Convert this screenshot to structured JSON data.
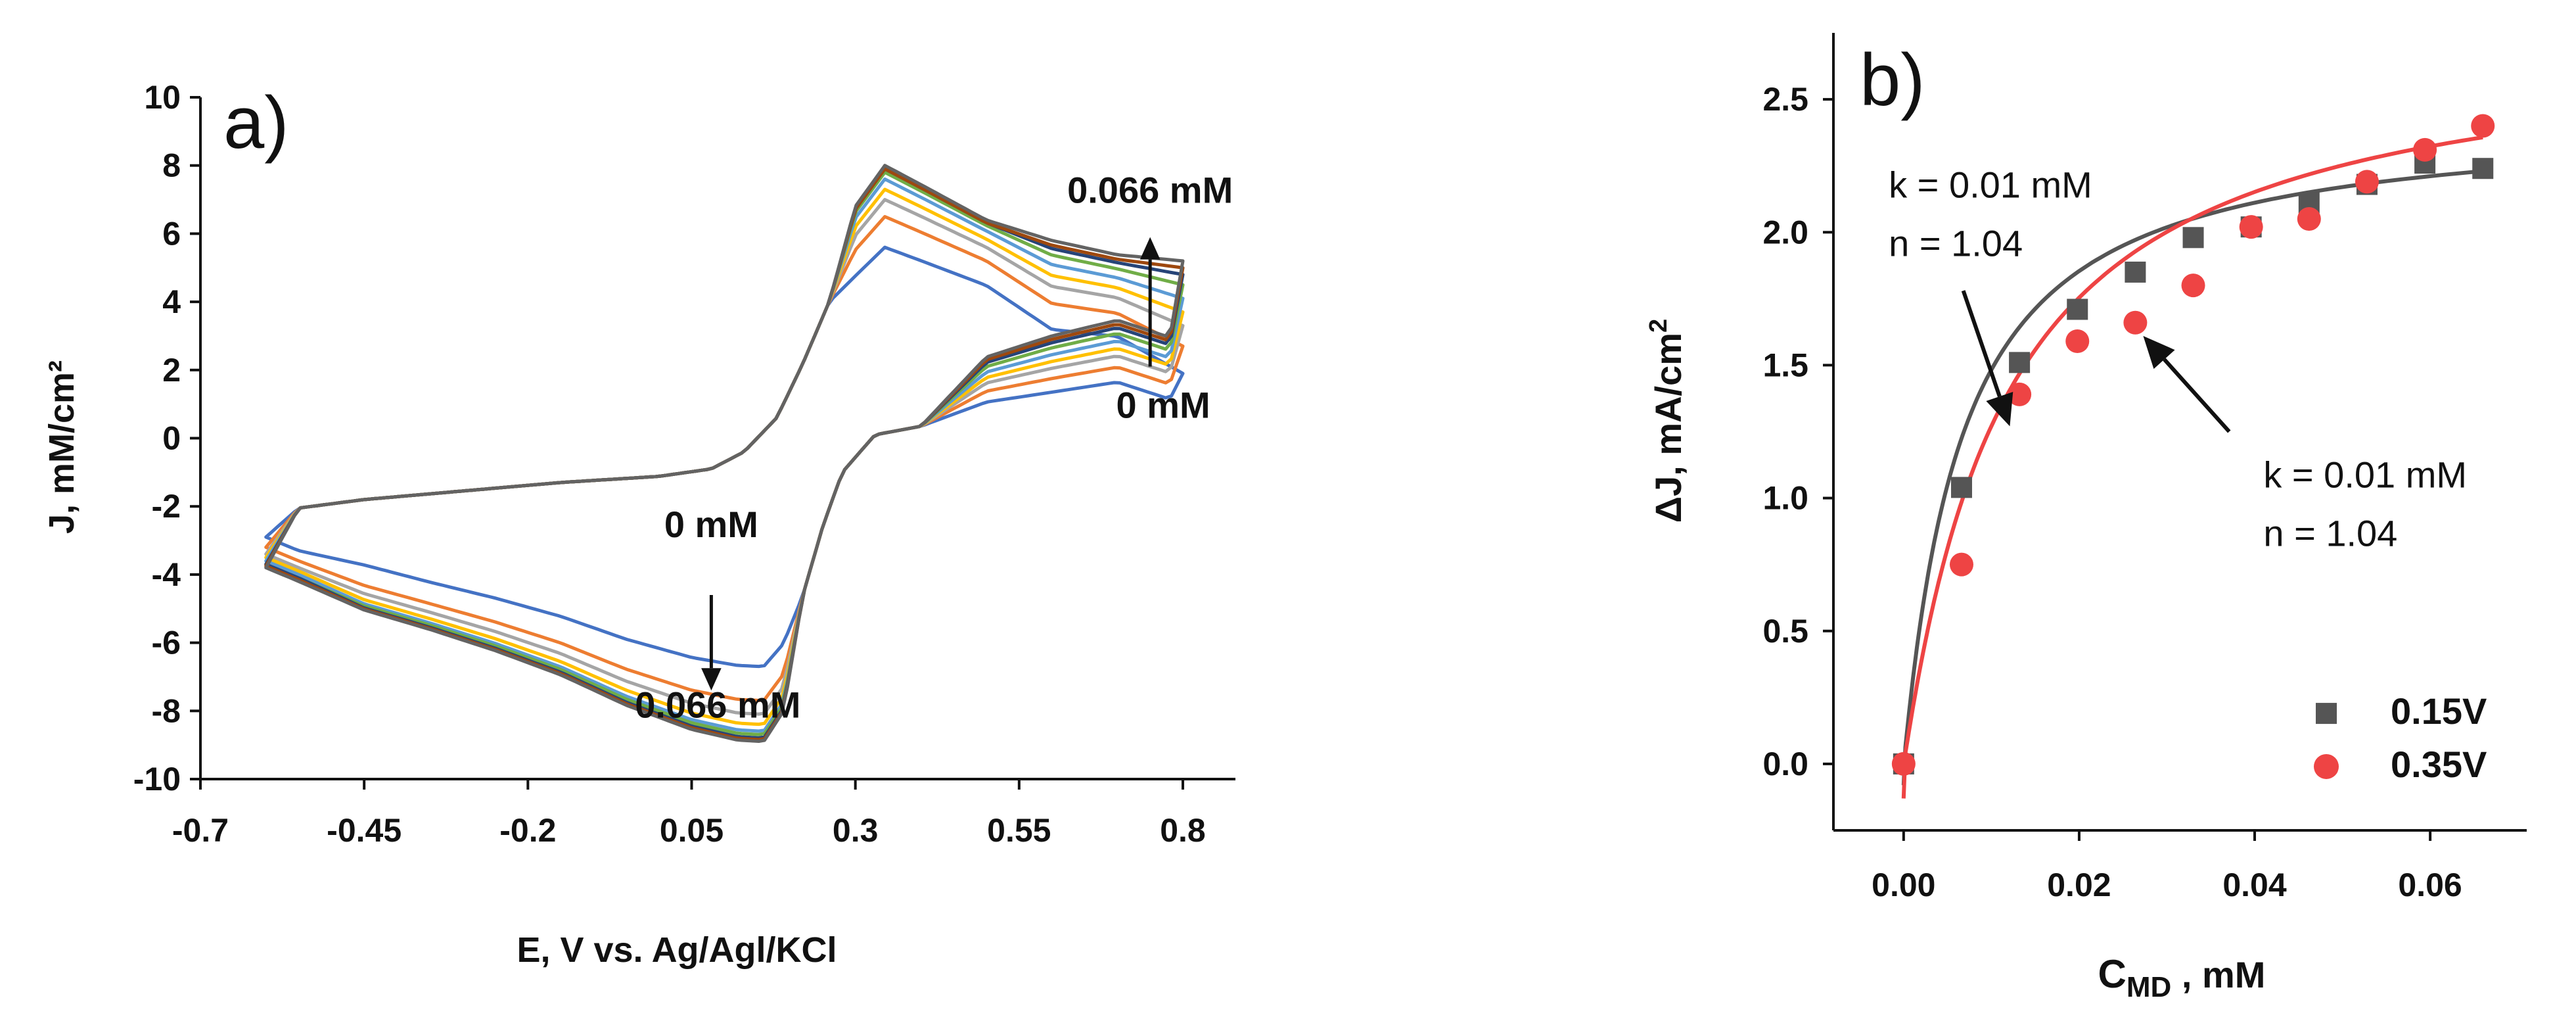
{
  "chart_data": [
    {
      "type": "line",
      "panel_label": "a)",
      "title": "",
      "xlabel": "E, V vs. Ag/Agl/KCl",
      "ylabel": "J, mM/cm²",
      "xlim": [
        -0.7,
        0.8
      ],
      "ylim": [
        -10,
        10
      ],
      "xticks": [
        -0.7,
        -0.45,
        -0.2,
        0.05,
        0.3,
        0.55,
        0.8
      ],
      "xtick_labels": [
        "-0.7",
        "-0.45",
        "-0.2",
        "0.05",
        "0.3",
        "0.55",
        "0.8"
      ],
      "yticks": [
        -10,
        -8,
        -6,
        -4,
        -2,
        0,
        2,
        4,
        6,
        8,
        10
      ],
      "ytick_labels": [
        "-10",
        "-8",
        "-6",
        "-4",
        "-2",
        "0",
        "2",
        "4",
        "6",
        "8",
        "10"
      ],
      "grid": false,
      "series_note": "Cyclic voltammograms for increasing analyte concentration, 0 mM to 0.066 mM",
      "series": [
        {
          "color": "#4472c4",
          "anodic_peak": 5.6,
          "cathodic_peak": -6.7,
          "reverse_end": 1.9,
          "forward_start_low": -2.9
        },
        {
          "color": "#ed7d31",
          "anodic_peak": 6.5,
          "cathodic_peak": -7.7,
          "reverse_end": 2.7,
          "forward_start_low": -3.2
        },
        {
          "color": "#a5a5a5",
          "anodic_peak": 7.0,
          "cathodic_peak": -8.1,
          "reverse_end": 3.3,
          "forward_start_low": -3.4
        },
        {
          "color": "#ffc000",
          "anodic_peak": 7.3,
          "cathodic_peak": -8.4,
          "reverse_end": 3.7,
          "forward_start_low": -3.5
        },
        {
          "color": "#5b9bd5",
          "anodic_peak": 7.6,
          "cathodic_peak": -8.6,
          "reverse_end": 4.1,
          "forward_start_low": -3.6
        },
        {
          "color": "#70ad47",
          "anodic_peak": 7.8,
          "cathodic_peak": -8.7,
          "reverse_end": 4.5,
          "forward_start_low": -3.7
        },
        {
          "color": "#264478",
          "anodic_peak": 7.9,
          "cathodic_peak": -8.8,
          "reverse_end": 4.8,
          "forward_start_low": -3.7
        },
        {
          "color": "#9e480e",
          "anodic_peak": 7.9,
          "cathodic_peak": -8.85,
          "reverse_end": 5.0,
          "forward_start_low": -3.75
        },
        {
          "color": "#636363",
          "anodic_peak": 8.0,
          "cathodic_peak": -8.9,
          "reverse_end": 5.2,
          "forward_start_low": -3.8
        }
      ],
      "annotations": [
        {
          "text": "0.066 mM",
          "x": 0.75,
          "y": 6.9
        },
        {
          "text": "0 mM",
          "x": 0.77,
          "y": 0.6
        },
        {
          "text": "0 mM",
          "x": 0.08,
          "y": -2.9
        },
        {
          "text": "0.066 mM",
          "x": 0.09,
          "y": -8.2
        }
      ]
    },
    {
      "type": "scatter",
      "panel_label": "b)",
      "title": "",
      "xlabel_main": "C",
      "xlabel_sub": "MD",
      "xlabel_tail": " , mM",
      "ylabel_main": "ΔJ, mA/cm",
      "ylabel_sup": "2",
      "xlim": [
        -0.008,
        0.071
      ],
      "ylim": [
        -0.25,
        2.75
      ],
      "xticks": [
        0.0,
        0.02,
        0.04,
        0.06
      ],
      "xtick_labels": [
        "0.00",
        "0.02",
        "0.04",
        "0.06"
      ],
      "yticks": [
        0.0,
        0.5,
        1.0,
        1.5,
        2.0,
        2.5
      ],
      "ytick_labels": [
        "0.0",
        "0.5",
        "1.0",
        "1.5",
        "2.0",
        "2.5"
      ],
      "grid": false,
      "legend_position": "bottom-right",
      "series": [
        {
          "name": "0.15V",
          "marker": "square",
          "color": "#555555",
          "x": [
            0.0,
            0.0066,
            0.0132,
            0.0198,
            0.0264,
            0.033,
            0.0396,
            0.0462,
            0.0528,
            0.0594,
            0.066
          ],
          "y": [
            0.0,
            1.04,
            1.51,
            1.71,
            1.85,
            1.98,
            2.02,
            2.11,
            2.18,
            2.26,
            2.24
          ],
          "fit": {
            "model": "Hill",
            "Jmax": 2.43,
            "k": 0.0065,
            "n": 1.04
          }
        },
        {
          "name": "0.35V",
          "marker": "circle",
          "color": "#ee4444",
          "x": [
            0.0,
            0.0066,
            0.0132,
            0.0198,
            0.0264,
            0.033,
            0.0396,
            0.0462,
            0.0528,
            0.0594,
            0.066
          ],
          "y": [
            0.0,
            0.75,
            1.39,
            1.59,
            1.66,
            1.8,
            2.02,
            2.05,
            2.19,
            2.31,
            2.4
          ],
          "fit": {
            "model": "Hill",
            "Jmax": 2.74,
            "k": 0.0115,
            "n": 1.04
          }
        }
      ],
      "annotations": [
        {
          "line1": "k = 0.01 mM",
          "line2": "n = 1.04",
          "x": -0.0017,
          "y1": 2.13,
          "y2": 1.91
        },
        {
          "line1": "k = 0.01 mM",
          "line2": "n = 1.04",
          "x": 0.041,
          "y1": 1.04,
          "y2": 0.82
        }
      ]
    }
  ]
}
